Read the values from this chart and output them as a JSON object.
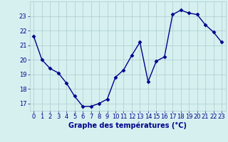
{
  "x": [
    0,
    1,
    2,
    3,
    4,
    5,
    6,
    7,
    8,
    9,
    10,
    11,
    12,
    13,
    14,
    15,
    16,
    17,
    18,
    19,
    20,
    21,
    22,
    23
  ],
  "y": [
    21.6,
    20.0,
    19.4,
    19.1,
    18.4,
    17.5,
    16.8,
    16.8,
    17.0,
    17.3,
    18.8,
    19.3,
    20.3,
    21.2,
    18.5,
    19.9,
    20.2,
    23.1,
    23.4,
    23.2,
    23.1,
    22.4,
    21.9,
    21.2
  ],
  "line_color": "#00008B",
  "marker": "D",
  "marker_size": 2.5,
  "bg_color": "#d6f0f0",
  "grid_color": "#aacccc",
  "xlabel": "Graphe des températures (°C)",
  "ylim": [
    16.5,
    24.0
  ],
  "xlim": [
    -0.5,
    23.5
  ],
  "yticks": [
    17,
    18,
    19,
    20,
    21,
    22,
    23
  ],
  "xticks": [
    0,
    1,
    2,
    3,
    4,
    5,
    6,
    7,
    8,
    9,
    10,
    11,
    12,
    13,
    14,
    15,
    16,
    17,
    18,
    19,
    20,
    21,
    22,
    23
  ],
  "tick_label_color": "#00008B",
  "xlabel_color": "#00008B",
  "xlabel_fontsize": 7,
  "tick_fontsize": 6,
  "line_width": 1.0
}
